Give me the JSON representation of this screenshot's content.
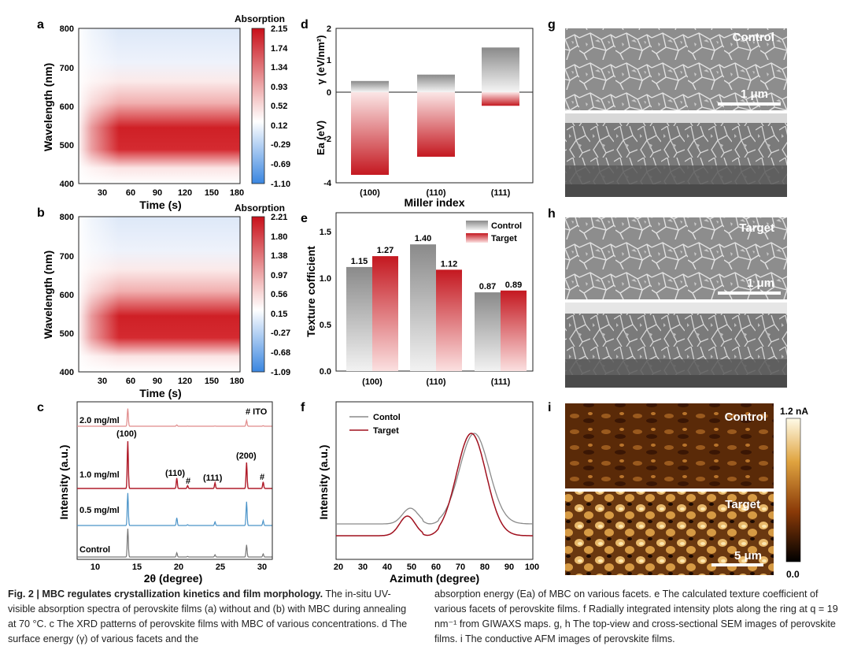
{
  "panels": {
    "a": {
      "letter": "a",
      "legend_title": "Absorption",
      "ylabel": "Wavelength (nm)",
      "xlabel": "Time (s)",
      "yticks": [
        "800",
        "700",
        "600",
        "500",
        "400"
      ],
      "xticks": [
        "30",
        "60",
        "90",
        "120",
        "150",
        "180"
      ],
      "cbar": [
        "2.15",
        "1.74",
        "1.34",
        "0.93",
        "0.52",
        "0.12",
        "-0.29",
        "-0.69",
        "-1.10"
      ]
    },
    "b": {
      "letter": "b",
      "legend_title": "Absorption",
      "ylabel": "Wavelength (nm)",
      "xlabel": "Time (s)",
      "yticks": [
        "800",
        "700",
        "600",
        "500",
        "400"
      ],
      "xticks": [
        "30",
        "60",
        "90",
        "120",
        "150",
        "180"
      ],
      "cbar": [
        "2.21",
        "1.80",
        "1.38",
        "0.97",
        "0.56",
        "0.15",
        "-0.27",
        "-0.68",
        "-1.09"
      ]
    },
    "c": {
      "letter": "c",
      "ylabel": "Intensity (a.u.)",
      "xlabel": "2θ (degree)",
      "xticks": [
        "10",
        "15",
        "20",
        "25",
        "30"
      ],
      "series_labels": [
        "2.0 mg/ml",
        "1.0 mg/ml",
        "0.5 mg/ml",
        "Control"
      ],
      "ito_label": "# ITO",
      "peaks": [
        "(100)",
        "(110)",
        "#",
        "(111)",
        "(200)",
        "#",
        "#"
      ],
      "colors": [
        "#e08a8a",
        "#b01c2a",
        "#4a93c8",
        "#777777"
      ]
    },
    "d": {
      "letter": "d",
      "ylabel_top": "γ (eV/nm²)",
      "ylabel_bottom": "Ea (eV)",
      "xlabel": "Miller index",
      "yticks": [
        "2",
        "1",
        "0",
        "-2",
        "-4"
      ],
      "categories": [
        "(100)",
        "(110)",
        "(111)"
      ]
    },
    "e": {
      "letter": "e",
      "ylabel": "Texture cofficient",
      "legend": [
        "Control",
        "Target"
      ],
      "yticks": [
        "1.5",
        "1.0",
        "0.5",
        "0.0"
      ],
      "categories": [
        "(100)",
        "(110)",
        "(111)"
      ],
      "control_labels": [
        "1.15",
        "1.40",
        "0.87"
      ],
      "target_labels": [
        "1.27",
        "1.12",
        "0.89"
      ]
    },
    "f": {
      "letter": "f",
      "ylabel": "Intensity (a.u.)",
      "xlabel": "Azimuth (degree)",
      "legend": [
        "Contol",
        "Target"
      ],
      "xticks": [
        "20",
        "30",
        "40",
        "50",
        "60",
        "70",
        "80",
        "90",
        "100"
      ]
    },
    "g": {
      "letter": "g",
      "label": "Control",
      "scale": "1 μm"
    },
    "h": {
      "letter": "h",
      "label": "Target",
      "scale": "1 μm"
    },
    "i": {
      "letter": "i",
      "label_top": "Control",
      "label_bottom": "Target",
      "scale": "5 μm",
      "cbar_max": "1.2 nA",
      "cbar_min": "0.0"
    }
  },
  "chart_data": [
    {
      "type": "heatmap",
      "panel": "d",
      "categories": [
        "(100)",
        "(110)",
        "(111)"
      ],
      "series": [
        {
          "name": "γ (eV/nm²)",
          "values": [
            0.35,
            0.55,
            1.4
          ]
        },
        {
          "name": "Ea (eV)",
          "values": [
            -3.65,
            -2.85,
            -0.6
          ]
        }
      ],
      "ylim": [
        -4,
        2
      ]
    },
    {
      "type": "bar",
      "panel": "e",
      "categories": [
        "(100)",
        "(110)",
        "(111)"
      ],
      "series": [
        {
          "name": "Control",
          "values": [
            1.15,
            1.4,
            0.87
          ]
        },
        {
          "name": "Target",
          "values": [
            1.27,
            1.12,
            0.89
          ]
        }
      ],
      "ylabel": "Texture cofficient",
      "ylim": [
        0,
        1.75
      ]
    },
    {
      "type": "line",
      "panel": "f",
      "xlabel": "Azimuth (degree)",
      "ylabel": "Intensity (a.u.)",
      "xlim": [
        20,
        100
      ],
      "series": [
        {
          "name": "Contol",
          "color": "#888888"
        },
        {
          "name": "Target",
          "color": "#a0101e"
        }
      ]
    }
  ],
  "caption": {
    "left_bold": "Fig. 2 | MBC regulates crystallization kinetics and film morphology.",
    "left_rest": " The in-situ UV-visible absorption spectra of perovskite films (a) without and (b) with MBC during annealing at 70 °C. c The XRD patterns of perovskite films with MBC of various concentrations. d The surface energy (γ) of various facets and the",
    "right": "absorption energy (Ea) of MBC on various facets. e The calculated texture coefficient of various facets of perovskite films. f Radially integrated intensity plots along the ring at q = 19 nm⁻¹ from GIWAXS maps. g, h The top-view and cross-sectional SEM images of perovskite films. i The conductive AFM images of perovskite films."
  }
}
